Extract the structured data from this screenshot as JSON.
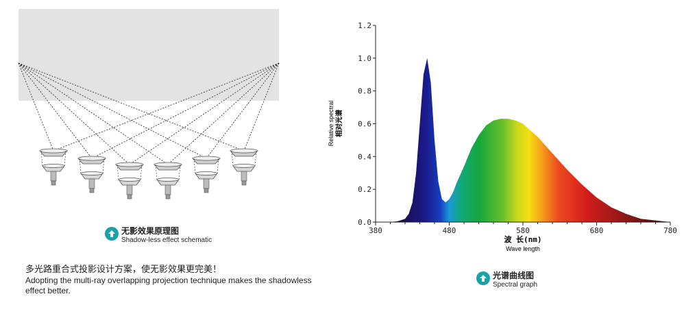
{
  "left_panel": {
    "caption_zh": "无影效果原理图",
    "caption_en": "Shadow-less effect  schematic",
    "description_zh": "多光路重合式投影设计方案，使无影效果更完美！",
    "description_en": "Adopting the multi-ray overlapping projection technique makes the shadowless effect better."
  },
  "right_panel": {
    "caption_zh": "光谱曲线图",
    "caption_en": "Spectral graph"
  },
  "chart_data": {
    "type": "area",
    "ylabel_en": "Relative spectral",
    "ylabel_zh": "相对光谱",
    "xlabel_zh": "波 长(nm)",
    "xlabel_en": "Wave length",
    "xlim": [
      380,
      780
    ],
    "ylim": [
      0,
      1.2
    ],
    "xticks": [
      380,
      480,
      580,
      680,
      780
    ],
    "yticks": [
      0.0,
      0.2,
      0.4,
      0.6,
      0.8,
      1.0,
      1.2
    ],
    "ytick_labels": [
      "0.0",
      "0.2",
      "0.4",
      "0.6",
      "0.8",
      "1.0",
      "1.2"
    ],
    "x": [
      380,
      400,
      410,
      420,
      425,
      430,
      435,
      440,
      445,
      450,
      455,
      460,
      465,
      470,
      475,
      480,
      485,
      490,
      500,
      510,
      520,
      530,
      540,
      550,
      560,
      570,
      580,
      590,
      600,
      620,
      640,
      660,
      680,
      700,
      720,
      740,
      760,
      780
    ],
    "y": [
      0.0,
      0.0,
      0.005,
      0.02,
      0.05,
      0.12,
      0.3,
      0.6,
      0.9,
      1.0,
      0.85,
      0.5,
      0.25,
      0.14,
      0.12,
      0.14,
      0.18,
      0.24,
      0.34,
      0.45,
      0.53,
      0.59,
      0.62,
      0.63,
      0.63,
      0.62,
      0.6,
      0.56,
      0.52,
      0.42,
      0.32,
      0.23,
      0.15,
      0.09,
      0.05,
      0.02,
      0.01,
      0.0
    ],
    "grid": false,
    "legend": false
  }
}
